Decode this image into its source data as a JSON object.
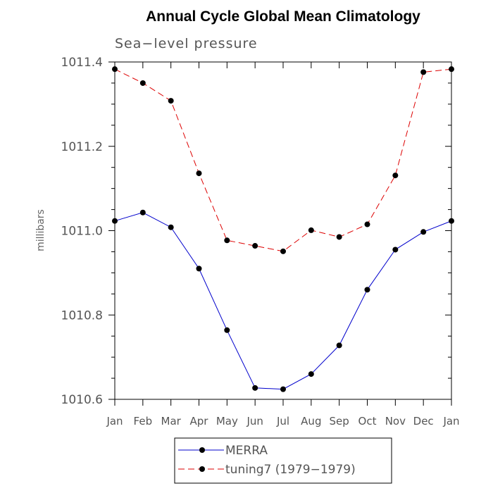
{
  "chart_data": {
    "type": "line",
    "title": "Annual Cycle Global Mean Climatology",
    "subtitle": "Sea−level pressure",
    "xlabel": "",
    "ylabel": "millibars",
    "ylim": [
      1010.6,
      1011.4
    ],
    "yticks": [
      "1010.6",
      "1010.8",
      "1011.0",
      "1011.2",
      "1011.4"
    ],
    "categories": [
      "Jan",
      "Feb",
      "Mar",
      "Apr",
      "May",
      "Jun",
      "Jul",
      "Aug",
      "Sep",
      "Oct",
      "Nov",
      "Dec",
      "Jan"
    ],
    "series": [
      {
        "name": "MERRA",
        "color": "#0000cc",
        "dash": "solid",
        "values": [
          1011.023,
          1011.043,
          1011.008,
          1010.91,
          1010.764,
          1010.627,
          1010.624,
          1010.66,
          1010.728,
          1010.86,
          1010.955,
          1010.997,
          1011.023
        ]
      },
      {
        "name": "tuning7 (1979−1979)",
        "color": "#dd0000",
        "dash": "dashed",
        "values": [
          1011.383,
          1011.35,
          1011.308,
          1011.136,
          1010.977,
          1010.964,
          1010.951,
          1011.001,
          1010.985,
          1011.015,
          1011.131,
          1011.376,
          1011.383
        ]
      }
    ],
    "legend_position": "bottom"
  }
}
